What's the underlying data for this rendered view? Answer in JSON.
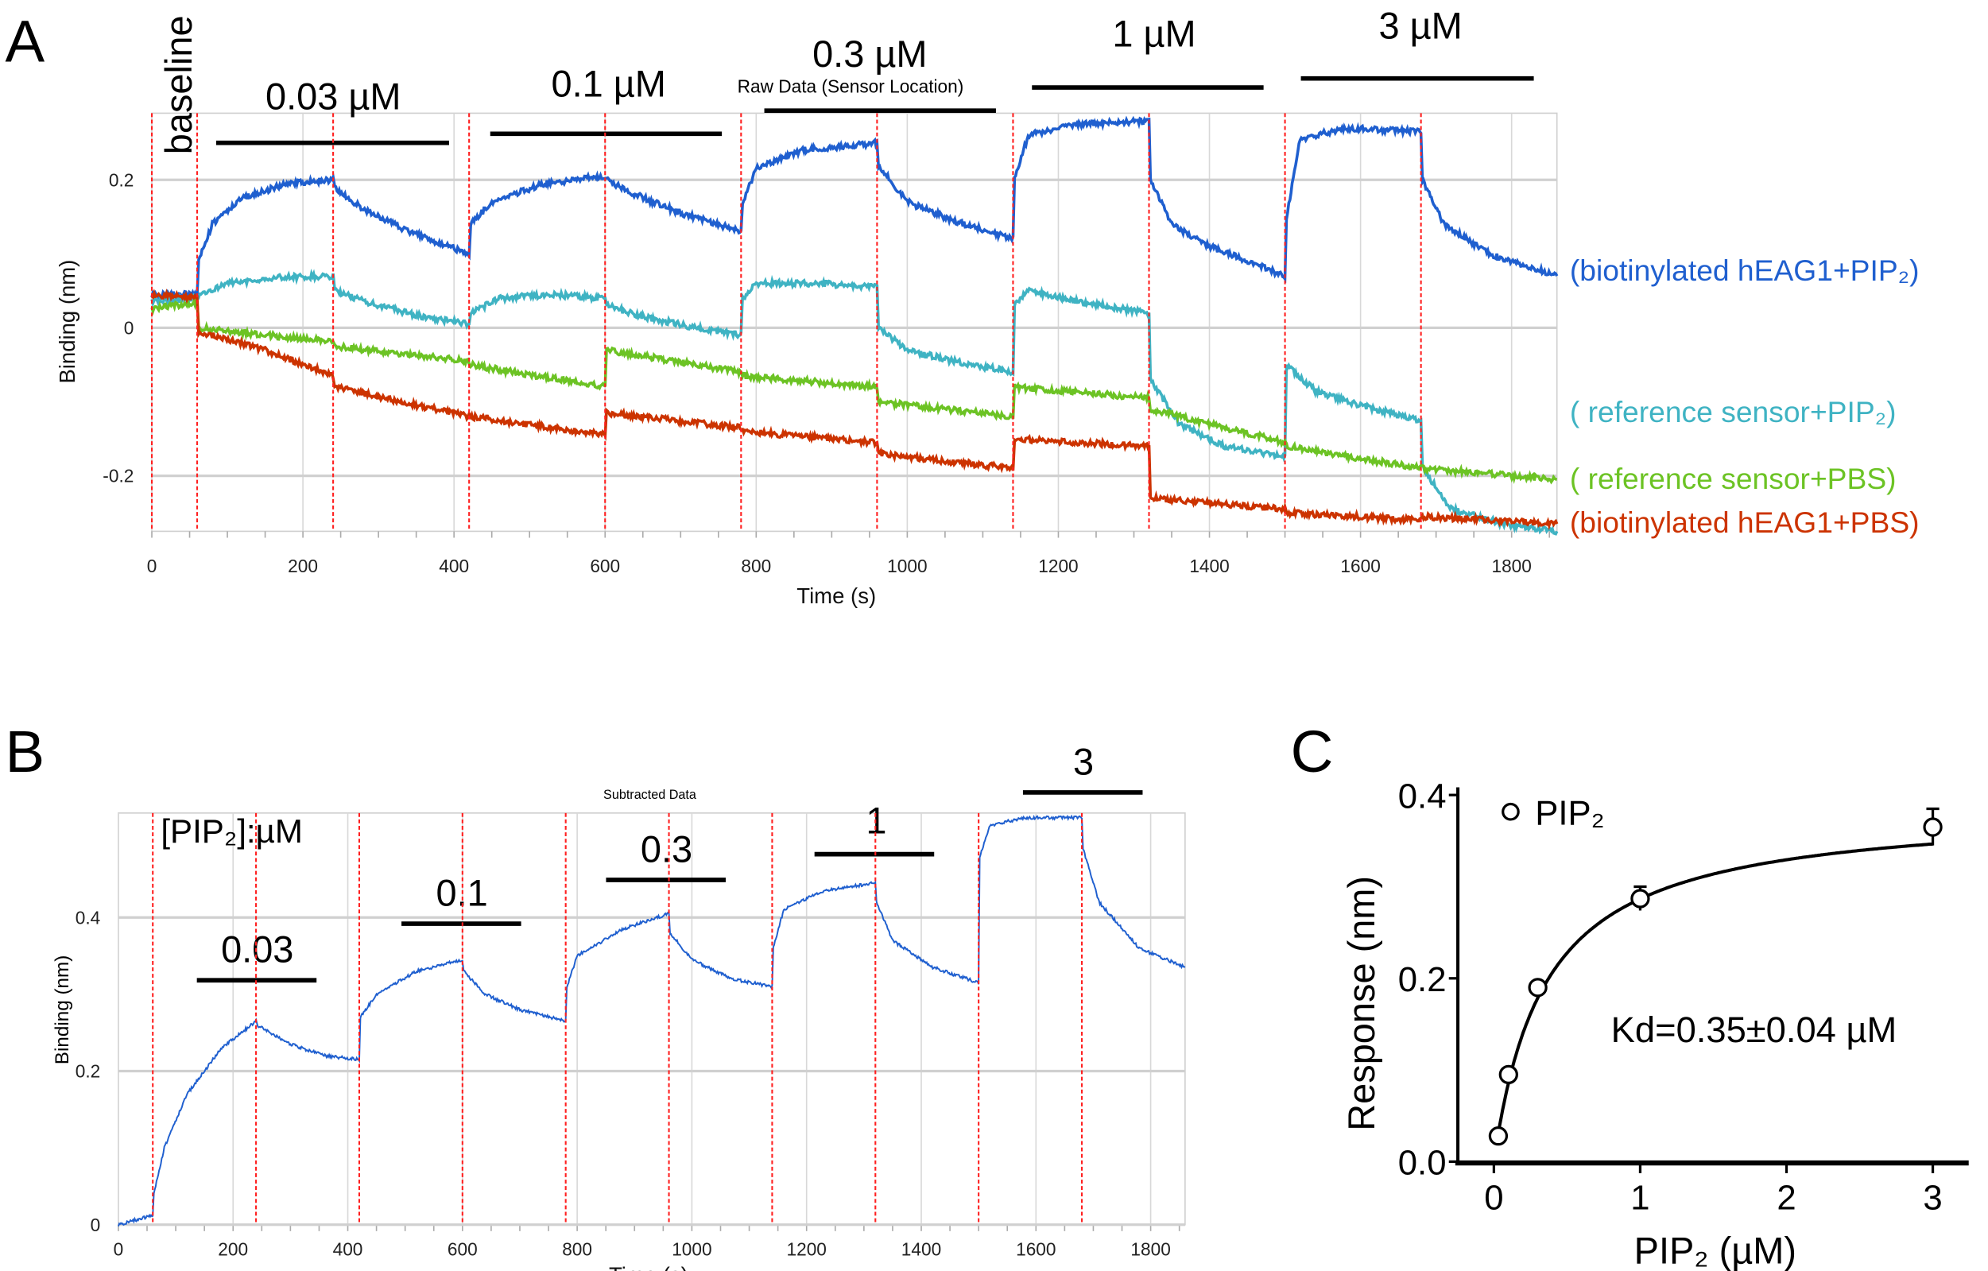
{
  "panel_labels": {
    "a": "A",
    "b": "B",
    "c": "C"
  },
  "chart_data": [
    {
      "type": "line",
      "title": "Raw Data (Sensor Location)",
      "xlabel": "Time (s)",
      "ylabel": "Binding (nm)",
      "xlim": [
        0,
        1860
      ],
      "ylim": [
        -0.275,
        0.29
      ],
      "xticks": [
        "0",
        "200",
        "400",
        "600",
        "800",
        "1000",
        "1200",
        "1400",
        "1600",
        "1800"
      ],
      "yticks": [
        "0.2",
        "0",
        "-0.2"
      ],
      "grid": true,
      "step_boundaries_s": [
        0,
        60,
        240,
        420,
        600,
        780,
        960,
        1140,
        1320,
        1500,
        1680
      ],
      "step_labels": [
        "baseline",
        "0.03 µM",
        "0.1 µM",
        "0.3 µM",
        "1 µM",
        "3 µM"
      ],
      "series": [
        {
          "name": "(biotinylated hEAG1+PIP₂)",
          "color": "#1f5fcf",
          "points": [
            [
              0,
              0.045
            ],
            [
              60,
              0.045
            ],
            [
              62,
              0.09
            ],
            [
              80,
              0.14
            ],
            [
              120,
              0.175
            ],
            [
              180,
              0.195
            ],
            [
              240,
              0.2
            ],
            [
              242,
              0.19
            ],
            [
              280,
              0.16
            ],
            [
              340,
              0.13
            ],
            [
              420,
              0.1
            ],
            [
              422,
              0.14
            ],
            [
              450,
              0.17
            ],
            [
              520,
              0.195
            ],
            [
              600,
              0.205
            ],
            [
              602,
              0.2
            ],
            [
              640,
              0.18
            ],
            [
              700,
              0.155
            ],
            [
              780,
              0.13
            ],
            [
              782,
              0.17
            ],
            [
              800,
              0.215
            ],
            [
              860,
              0.24
            ],
            [
              960,
              0.25
            ],
            [
              962,
              0.22
            ],
            [
              1000,
              0.17
            ],
            [
              1060,
              0.145
            ],
            [
              1140,
              0.12
            ],
            [
              1142,
              0.2
            ],
            [
              1160,
              0.26
            ],
            [
              1220,
              0.275
            ],
            [
              1320,
              0.28
            ],
            [
              1322,
              0.2
            ],
            [
              1350,
              0.14
            ],
            [
              1400,
              0.11
            ],
            [
              1500,
              0.07
            ],
            [
              1502,
              0.15
            ],
            [
              1520,
              0.255
            ],
            [
              1580,
              0.27
            ],
            [
              1680,
              0.265
            ],
            [
              1682,
              0.2
            ],
            [
              1710,
              0.14
            ],
            [
              1770,
              0.1
            ],
            [
              1860,
              0.07
            ]
          ]
        },
        {
          "name": "( reference sensor+PIP₂)",
          "color": "#3fb3c3",
          "points": [
            [
              0,
              0.035
            ],
            [
              60,
              0.04
            ],
            [
              62,
              0.045
            ],
            [
              100,
              0.06
            ],
            [
              160,
              0.068
            ],
            [
              240,
              0.07
            ],
            [
              242,
              0.05
            ],
            [
              300,
              0.03
            ],
            [
              360,
              0.015
            ],
            [
              420,
              0.005
            ],
            [
              422,
              0.02
            ],
            [
              460,
              0.04
            ],
            [
              530,
              0.045
            ],
            [
              600,
              0.04
            ],
            [
              602,
              0.03
            ],
            [
              650,
              0.015
            ],
            [
              720,
              0.0
            ],
            [
              780,
              -0.01
            ],
            [
              782,
              0.04
            ],
            [
              800,
              0.06
            ],
            [
              880,
              0.06
            ],
            [
              960,
              0.055
            ],
            [
              962,
              0.0
            ],
            [
              1000,
              -0.03
            ],
            [
              1060,
              -0.045
            ],
            [
              1140,
              -0.06
            ],
            [
              1142,
              0.03
            ],
            [
              1160,
              0.05
            ],
            [
              1230,
              0.035
            ],
            [
              1320,
              0.02
            ],
            [
              1322,
              -0.07
            ],
            [
              1360,
              -0.13
            ],
            [
              1420,
              -0.16
            ],
            [
              1500,
              -0.175
            ],
            [
              1502,
              -0.05
            ],
            [
              1540,
              -0.085
            ],
            [
              1600,
              -0.105
            ],
            [
              1680,
              -0.125
            ],
            [
              1682,
              -0.19
            ],
            [
              1720,
              -0.245
            ],
            [
              1790,
              -0.265
            ],
            [
              1860,
              -0.275
            ]
          ]
        },
        {
          "name": "( reference sensor+PBS)",
          "color": "#6cc324",
          "points": [
            [
              0,
              0.025
            ],
            [
              60,
              0.035
            ],
            [
              62,
              0
            ],
            [
              150,
              -0.01
            ],
            [
              240,
              -0.018
            ],
            [
              242,
              -0.025
            ],
            [
              420,
              -0.045
            ],
            [
              422,
              -0.05
            ],
            [
              600,
              -0.08
            ],
            [
              602,
              -0.03
            ],
            [
              780,
              -0.06
            ],
            [
              782,
              -0.065
            ],
            [
              960,
              -0.08
            ],
            [
              962,
              -0.1
            ],
            [
              1140,
              -0.12
            ],
            [
              1142,
              -0.08
            ],
            [
              1320,
              -0.095
            ],
            [
              1322,
              -0.11
            ],
            [
              1500,
              -0.155
            ],
            [
              1502,
              -0.16
            ],
            [
              1680,
              -0.19
            ],
            [
              1682,
              -0.19
            ],
            [
              1860,
              -0.205
            ]
          ]
        },
        {
          "name": "(biotinylated hEAG1+PBS)",
          "color": "#cc3300",
          "points": [
            [
              0,
              0.045
            ],
            [
              60,
              0.04
            ],
            [
              62,
              -0.005
            ],
            [
              150,
              -0.03
            ],
            [
              240,
              -0.065
            ],
            [
              242,
              -0.08
            ],
            [
              330,
              -0.1
            ],
            [
              420,
              -0.12
            ],
            [
              422,
              -0.12
            ],
            [
              600,
              -0.145
            ],
            [
              602,
              -0.115
            ],
            [
              780,
              -0.135
            ],
            [
              782,
              -0.14
            ],
            [
              960,
              -0.155
            ],
            [
              962,
              -0.17
            ],
            [
              1140,
              -0.19
            ],
            [
              1142,
              -0.15
            ],
            [
              1320,
              -0.16
            ],
            [
              1322,
              -0.23
            ],
            [
              1500,
              -0.245
            ],
            [
              1502,
              -0.25
            ],
            [
              1680,
              -0.26
            ],
            [
              1682,
              -0.255
            ],
            [
              1860,
              -0.265
            ]
          ]
        }
      ]
    },
    {
      "type": "line",
      "title": "Subtracted Data",
      "xlabel": "Time (s)",
      "ylabel": "Binding (nm)",
      "xlim": [
        0,
        1860
      ],
      "ylim": [
        0,
        0.536
      ],
      "xticks": [
        "0",
        "200",
        "400",
        "600",
        "800",
        "1000",
        "1200",
        "1400",
        "1600",
        "1800"
      ],
      "yticks": [
        "0",
        "0.2",
        "0.4"
      ],
      "grid": true,
      "step_boundaries_s": [
        60,
        240,
        420,
        600,
        780,
        960,
        1140,
        1320,
        1500,
        1680
      ],
      "concentration_header": "[PIP₂]:µM",
      "step_labels": [
        "0.03",
        "0.1",
        "0.3",
        "1",
        "3"
      ],
      "series": [
        {
          "color": "#1f5fcf",
          "points": [
            [
              0,
              0
            ],
            [
              60,
              0.012
            ],
            [
              62,
              0.04
            ],
            [
              80,
              0.1
            ],
            [
              120,
              0.17
            ],
            [
              180,
              0.23
            ],
            [
              240,
              0.265
            ],
            [
              242,
              0.26
            ],
            [
              300,
              0.235
            ],
            [
              360,
              0.22
            ],
            [
              420,
              0.215
            ],
            [
              422,
              0.27
            ],
            [
              450,
              0.3
            ],
            [
              520,
              0.33
            ],
            [
              600,
              0.345
            ],
            [
              602,
              0.33
            ],
            [
              640,
              0.3
            ],
            [
              700,
              0.28
            ],
            [
              780,
              0.265
            ],
            [
              782,
              0.31
            ],
            [
              800,
              0.35
            ],
            [
              880,
              0.385
            ],
            [
              960,
              0.405
            ],
            [
              962,
              0.38
            ],
            [
              1000,
              0.345
            ],
            [
              1070,
              0.32
            ],
            [
              1140,
              0.31
            ],
            [
              1142,
              0.36
            ],
            [
              1160,
              0.41
            ],
            [
              1230,
              0.435
            ],
            [
              1320,
              0.445
            ],
            [
              1322,
              0.42
            ],
            [
              1350,
              0.37
            ],
            [
              1420,
              0.335
            ],
            [
              1500,
              0.315
            ],
            [
              1502,
              0.48
            ],
            [
              1520,
              0.52
            ],
            [
              1580,
              0.53
            ],
            [
              1680,
              0.53
            ],
            [
              1682,
              0.49
            ],
            [
              1710,
              0.42
            ],
            [
              1780,
              0.36
            ],
            [
              1860,
              0.335
            ]
          ]
        }
      ]
    },
    {
      "type": "scatter",
      "xlabel": "PIP₂ (µM)",
      "ylabel": "Response (nm)",
      "xlim": [
        0,
        3.2
      ],
      "ylim": [
        0,
        0.4
      ],
      "xticks": [
        "0",
        "1",
        "2",
        "3"
      ],
      "yticks": [
        "0.0",
        "0.2",
        "0.4"
      ],
      "legend": "top-left",
      "annotation": "Kd=0.35±0.04 µM",
      "series": [
        {
          "name": "PIP₂",
          "x": [
            0.03,
            0.1,
            0.3,
            1,
            3
          ],
          "y": [
            0.028,
            0.095,
            0.19,
            0.287,
            0.365
          ],
          "err": [
            0,
            0,
            0,
            0.013,
            0.02
          ]
        }
      ],
      "fit": {
        "model": "one-site binding",
        "Kd": 0.35,
        "Bmax": 0.387
      }
    }
  ]
}
